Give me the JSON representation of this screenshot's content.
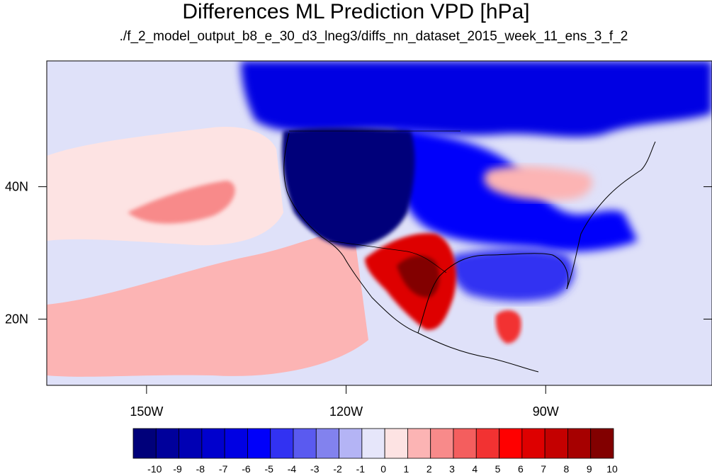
{
  "title": "Differences ML Prediction VPD [hPa]",
  "subtitle": "./f_2_model_output_b8_e_30_d3_lneg3/diffs_nn_dataset_2015_week_11_ens_3_f_2",
  "map": {
    "lon_range": [
      -165,
      -65
    ],
    "lat_range": [
      10,
      59
    ],
    "lon_ticks": [
      {
        "value": -150,
        "label": "150W"
      },
      {
        "value": -120,
        "label": "120W"
      },
      {
        "value": -90,
        "label": "90W"
      }
    ],
    "lat_ticks": [
      {
        "value": 40,
        "label": "40N"
      },
      {
        "value": 20,
        "label": "20N"
      }
    ],
    "ocean_color": "#dfe1f9",
    "regions": [
      {
        "name": "western-us-strong-negative",
        "level": -10
      },
      {
        "name": "northern-canada-negative",
        "level": -6
      },
      {
        "name": "central-plains-negative",
        "level": -5
      },
      {
        "name": "gulf-of-mexico-negative",
        "level": -4
      },
      {
        "name": "northeastern-pacific-positive",
        "level": 1
      },
      {
        "name": "subtropical-pacific-positive",
        "level": 2
      },
      {
        "name": "mexico-plateau-positive",
        "level": 7
      },
      {
        "name": "central-america-positive",
        "level": 5
      },
      {
        "name": "great-lakes-positive",
        "level": 2
      }
    ]
  },
  "colorbar": {
    "labels": [
      "-10",
      "-9",
      "-8",
      "-7",
      "-6",
      "-5",
      "-4",
      "-3",
      "-2",
      "-1",
      "0",
      "1",
      "2",
      "3",
      "4",
      "5",
      "6",
      "7",
      "8",
      "9",
      "10"
    ],
    "colors": [
      "#00007a",
      "#00009b",
      "#0000b4",
      "#0000cd",
      "#0000e3",
      "#0000fa",
      "#3232f2",
      "#5a5af0",
      "#8282ee",
      "#b4b4f5",
      "#e6e6fa",
      "#fde3e3",
      "#fcb4b4",
      "#f88a8a",
      "#f45e5e",
      "#f23232",
      "#ff0000",
      "#de0000",
      "#c40000",
      "#a60000",
      "#820000"
    ]
  }
}
